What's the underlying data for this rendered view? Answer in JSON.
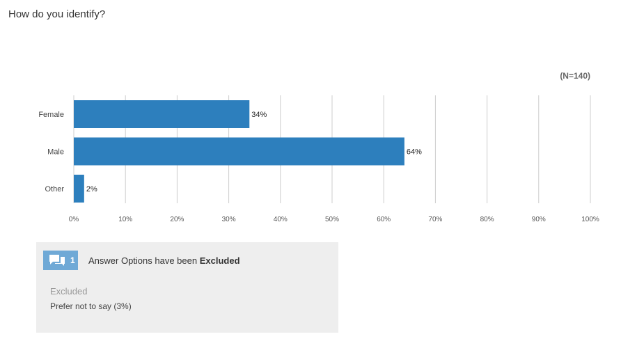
{
  "question": {
    "title": "How do you identify?",
    "n_label": "(N=140)"
  },
  "chart_data": {
    "type": "bar",
    "orientation": "horizontal",
    "categories": [
      "Female",
      "Male",
      "Other"
    ],
    "values": [
      34,
      64,
      2
    ],
    "value_labels": [
      "34%",
      "64%",
      "2%"
    ],
    "xlim": [
      0,
      100
    ],
    "x_ticks": [
      "0%",
      "10%",
      "20%",
      "30%",
      "40%",
      "50%",
      "60%",
      "70%",
      "80%",
      "90%",
      "100%"
    ],
    "grid": "vertical",
    "bar_color": "#2d7fbd",
    "grid_color": "#cccccc"
  },
  "excluded": {
    "count": "1",
    "message_prefix": "Answer Options have been",
    "message_bold": "Excluded",
    "heading": "Excluded",
    "items": [
      "Prefer not to say (3%)"
    ],
    "icon": "chat-bubbles-icon",
    "badge_color": "#6fa9d6"
  }
}
